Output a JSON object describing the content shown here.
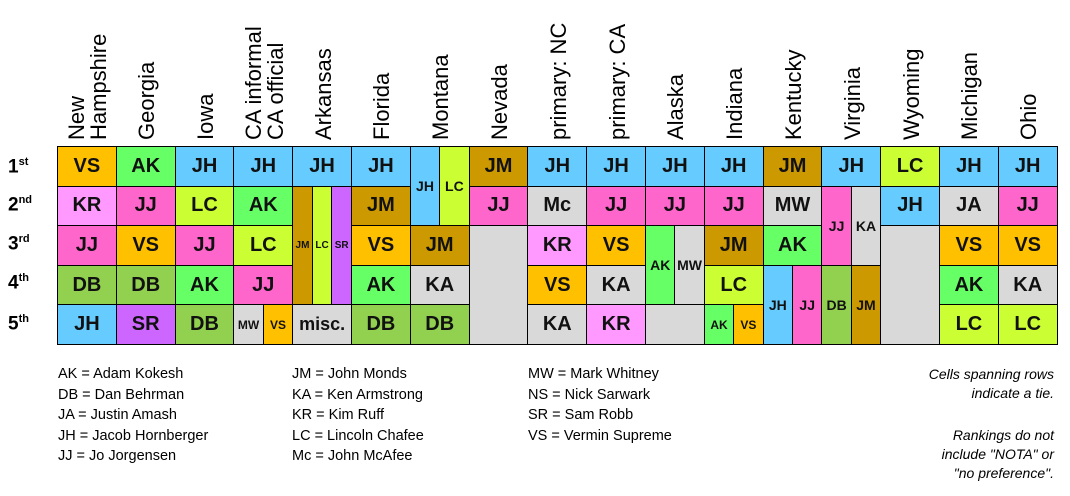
{
  "colors": {
    "VS": "#ffc000",
    "AK": "#66ff66",
    "JH": "#66ccff",
    "KR": "#ff99ff",
    "JJ": "#ff66cc",
    "DB": "#92d050",
    "SR": "#cc66ff",
    "LC": "#ccff33",
    "JM": "#cc9900",
    "Mc": "#d9d9d9",
    "KA": "#d9d9d9",
    "MW": "#d9d9d9",
    "JA": "#d9d9d9",
    "misc": "#d9d9d9",
    "empty": "#d9d9d9"
  },
  "columns": [
    {
      "lines": [
        "New",
        "Hampshire"
      ]
    },
    {
      "lines": [
        "Georgia"
      ]
    },
    {
      "lines": [
        "Iowa"
      ]
    },
    {
      "lines": [
        "CA informal",
        "CA official"
      ]
    },
    {
      "lines": [
        "Arkansas"
      ]
    },
    {
      "lines": [
        "Florida"
      ]
    },
    {
      "lines": [
        "Montana"
      ]
    },
    {
      "lines": [
        "Nevada"
      ]
    },
    {
      "lines": [
        "primary: NC"
      ]
    },
    {
      "lines": [
        "primary: CA"
      ]
    },
    {
      "lines": [
        "Alaska"
      ]
    },
    {
      "lines": [
        "Indiana"
      ]
    },
    {
      "lines": [
        "Kentucky"
      ]
    },
    {
      "lines": [
        "Virginia"
      ]
    },
    {
      "lines": [
        "Wyoming"
      ]
    },
    {
      "lines": [
        "Michigan"
      ]
    },
    {
      "lines": [
        "Ohio"
      ]
    }
  ],
  "rows": [
    {
      "num": "1",
      "suffix": "st"
    },
    {
      "num": "2",
      "suffix": "nd"
    },
    {
      "num": "3",
      "suffix": "rd"
    },
    {
      "num": "4",
      "suffix": "th"
    },
    {
      "num": "5",
      "suffix": "th"
    }
  ],
  "cells": [
    {
      "col": 0,
      "row": 0,
      "label": "VS",
      "c": "VS"
    },
    {
      "col": 0,
      "row": 1,
      "label": "KR",
      "c": "KR"
    },
    {
      "col": 0,
      "row": 2,
      "label": "JJ",
      "c": "JJ"
    },
    {
      "col": 0,
      "row": 3,
      "label": "DB",
      "c": "DB"
    },
    {
      "col": 0,
      "row": 4,
      "label": "JH",
      "c": "JH"
    },
    {
      "col": 1,
      "row": 0,
      "label": "AK",
      "c": "AK"
    },
    {
      "col": 1,
      "row": 1,
      "label": "JJ",
      "c": "JJ"
    },
    {
      "col": 1,
      "row": 2,
      "label": "VS",
      "c": "VS"
    },
    {
      "col": 1,
      "row": 3,
      "label": "DB",
      "c": "DB"
    },
    {
      "col": 1,
      "row": 4,
      "label": "SR",
      "c": "SR"
    },
    {
      "col": 2,
      "row": 0,
      "label": "JH",
      "c": "JH"
    },
    {
      "col": 2,
      "row": 1,
      "label": "LC",
      "c": "LC"
    },
    {
      "col": 2,
      "row": 2,
      "label": "JJ",
      "c": "JJ"
    },
    {
      "col": 2,
      "row": 3,
      "label": "AK",
      "c": "AK"
    },
    {
      "col": 2,
      "row": 4,
      "label": "DB",
      "c": "DB"
    },
    {
      "col": 3,
      "row": 0,
      "label": "JH",
      "c": "JH"
    },
    {
      "col": 3,
      "row": 1,
      "label": "AK",
      "c": "AK"
    },
    {
      "col": 3,
      "row": 2,
      "label": "LC",
      "c": "LC"
    },
    {
      "col": 3,
      "row": 3,
      "label": "JJ",
      "c": "JJ"
    },
    {
      "col": 3,
      "row": 4,
      "label": "MW",
      "c": "MW",
      "sub": 0,
      "subs": 2,
      "small": true
    },
    {
      "col": 3,
      "row": 4,
      "label": "VS",
      "c": "VS",
      "sub": 1,
      "subs": 2,
      "small": true
    },
    {
      "col": 4,
      "row": 0,
      "label": "JH",
      "c": "JH"
    },
    {
      "col": 4,
      "row": 1,
      "span": 3,
      "label": "JM",
      "c": "JM",
      "sub": 0,
      "subs": 3,
      "small": true
    },
    {
      "col": 4,
      "row": 1,
      "span": 3,
      "label": "LC",
      "c": "LC",
      "sub": 1,
      "subs": 3,
      "small": true
    },
    {
      "col": 4,
      "row": 1,
      "span": 3,
      "label": "SR",
      "c": "SR",
      "sub": 2,
      "subs": 3,
      "small": true
    },
    {
      "col": 4,
      "row": 4,
      "label": "misc.",
      "c": "misc"
    },
    {
      "col": 5,
      "row": 0,
      "label": "JH",
      "c": "JH"
    },
    {
      "col": 5,
      "row": 1,
      "label": "JM",
      "c": "JM"
    },
    {
      "col": 5,
      "row": 2,
      "label": "VS",
      "c": "VS"
    },
    {
      "col": 5,
      "row": 3,
      "label": "AK",
      "c": "AK"
    },
    {
      "col": 5,
      "row": 4,
      "label": "DB",
      "c": "DB"
    },
    {
      "col": 6,
      "row": 0,
      "span": 2,
      "label": "JH",
      "c": "JH",
      "sub": 0,
      "subs": 2,
      "small": true
    },
    {
      "col": 6,
      "row": 0,
      "span": 2,
      "label": "LC",
      "c": "LC",
      "sub": 1,
      "subs": 2,
      "small": true
    },
    {
      "col": 6,
      "row": 2,
      "label": "JM",
      "c": "JM"
    },
    {
      "col": 6,
      "row": 3,
      "label": "KA",
      "c": "KA"
    },
    {
      "col": 6,
      "row": 4,
      "label": "DB",
      "c": "DB"
    },
    {
      "col": 7,
      "row": 0,
      "label": "JM",
      "c": "JM"
    },
    {
      "col": 7,
      "row": 1,
      "label": "JJ",
      "c": "JJ"
    },
    {
      "col": 7,
      "row": 2,
      "span": 3,
      "label": "",
      "c": "empty"
    },
    {
      "col": 8,
      "row": 0,
      "label": "JH",
      "c": "JH"
    },
    {
      "col": 8,
      "row": 1,
      "label": "Mc",
      "c": "Mc"
    },
    {
      "col": 8,
      "row": 2,
      "label": "KR",
      "c": "KR"
    },
    {
      "col": 8,
      "row": 3,
      "label": "VS",
      "c": "VS"
    },
    {
      "col": 8,
      "row": 4,
      "label": "KA",
      "c": "KA"
    },
    {
      "col": 9,
      "row": 0,
      "label": "JH",
      "c": "JH"
    },
    {
      "col": 9,
      "row": 1,
      "label": "JJ",
      "c": "JJ"
    },
    {
      "col": 9,
      "row": 2,
      "label": "VS",
      "c": "VS"
    },
    {
      "col": 9,
      "row": 3,
      "label": "KA",
      "c": "KA"
    },
    {
      "col": 9,
      "row": 4,
      "label": "KR",
      "c": "KR"
    },
    {
      "col": 10,
      "row": 0,
      "label": "JH",
      "c": "JH"
    },
    {
      "col": 10,
      "row": 1,
      "label": "JJ",
      "c": "JJ"
    },
    {
      "col": 10,
      "row": 2,
      "span": 2,
      "label": "AK",
      "c": "AK",
      "sub": 0,
      "subs": 2,
      "small": true
    },
    {
      "col": 10,
      "row": 2,
      "span": 2,
      "label": "MW",
      "c": "MW",
      "sub": 1,
      "subs": 2,
      "small": true
    },
    {
      "col": 10,
      "row": 4,
      "label": "",
      "c": "empty"
    },
    {
      "col": 11,
      "row": 0,
      "label": "JH",
      "c": "JH"
    },
    {
      "col": 11,
      "row": 1,
      "label": "JJ",
      "c": "JJ"
    },
    {
      "col": 11,
      "row": 2,
      "label": "JM",
      "c": "JM"
    },
    {
      "col": 11,
      "row": 3,
      "label": "LC",
      "c": "LC"
    },
    {
      "col": 11,
      "row": 4,
      "label": "AK",
      "c": "AK",
      "sub": 0,
      "subs": 2,
      "small": true
    },
    {
      "col": 11,
      "row": 4,
      "label": "VS",
      "c": "VS",
      "sub": 1,
      "subs": 2,
      "small": true
    },
    {
      "col": 12,
      "row": 0,
      "label": "JM",
      "c": "JM"
    },
    {
      "col": 12,
      "row": 1,
      "label": "MW",
      "c": "MW"
    },
    {
      "col": 12,
      "row": 2,
      "label": "AK",
      "c": "AK"
    },
    {
      "col": 12,
      "row": 3,
      "span": 2,
      "label": "JH",
      "c": "JH",
      "sub": 0,
      "subs": 2,
      "small": true
    },
    {
      "col": 12,
      "row": 3,
      "span": 2,
      "label": "JJ",
      "c": "JJ",
      "sub": 1,
      "subs": 2,
      "small": true
    },
    {
      "col": 13,
      "row": 0,
      "label": "JH",
      "c": "JH"
    },
    {
      "col": 13,
      "row": 1,
      "span": 2,
      "label": "JJ",
      "c": "JJ",
      "sub": 0,
      "subs": 2,
      "small": true
    },
    {
      "col": 13,
      "row": 1,
      "span": 2,
      "label": "KA",
      "c": "KA",
      "sub": 1,
      "subs": 2,
      "small": true
    },
    {
      "col": 13,
      "row": 3,
      "span": 2,
      "label": "DB",
      "c": "DB",
      "sub": 0,
      "subs": 2,
      "small": true
    },
    {
      "col": 13,
      "row": 3,
      "span": 2,
      "label": "JM",
      "c": "JM",
      "sub": 1,
      "subs": 2,
      "small": true
    },
    {
      "col": 14,
      "row": 0,
      "label": "LC",
      "c": "LC"
    },
    {
      "col": 14,
      "row": 1,
      "label": "JH",
      "c": "JH"
    },
    {
      "col": 14,
      "row": 2,
      "span": 3,
      "label": "",
      "c": "empty"
    },
    {
      "col": 15,
      "row": 0,
      "label": "JH",
      "c": "JH"
    },
    {
      "col": 15,
      "row": 1,
      "label": "JA",
      "c": "JA"
    },
    {
      "col": 15,
      "row": 2,
      "label": "VS",
      "c": "VS"
    },
    {
      "col": 15,
      "row": 3,
      "label": "AK",
      "c": "AK"
    },
    {
      "col": 15,
      "row": 4,
      "label": "LC",
      "c": "LC"
    },
    {
      "col": 16,
      "row": 0,
      "label": "JH",
      "c": "JH"
    },
    {
      "col": 16,
      "row": 1,
      "label": "JJ",
      "c": "JJ"
    },
    {
      "col": 16,
      "row": 2,
      "label": "VS",
      "c": "VS"
    },
    {
      "col": 16,
      "row": 3,
      "label": "KA",
      "c": "KA"
    },
    {
      "col": 16,
      "row": 4,
      "label": "LC",
      "c": "LC"
    }
  ],
  "legend": [
    [
      "AK = Adam Kokesh",
      "DB = Dan Behrman",
      "JA = Justin Amash",
      "JH = Jacob Hornberger",
      "JJ = Jo Jorgensen"
    ],
    [
      "JM = John Monds",
      "KA = Ken Armstrong",
      "KR = Kim Ruff",
      "LC = Lincoln Chafee",
      "Mc = John McAfee"
    ],
    [
      "MW = Mark Whitney",
      "NS = Nick Sarwark",
      "SR = Sam Robb",
      "VS = Vermin Supreme"
    ]
  ],
  "notes": [
    [
      "Cells spanning rows",
      "indicate a tie."
    ],
    [
      "Rankings do not",
      "include \"NOTA\" or",
      "\"no preference\"."
    ]
  ]
}
